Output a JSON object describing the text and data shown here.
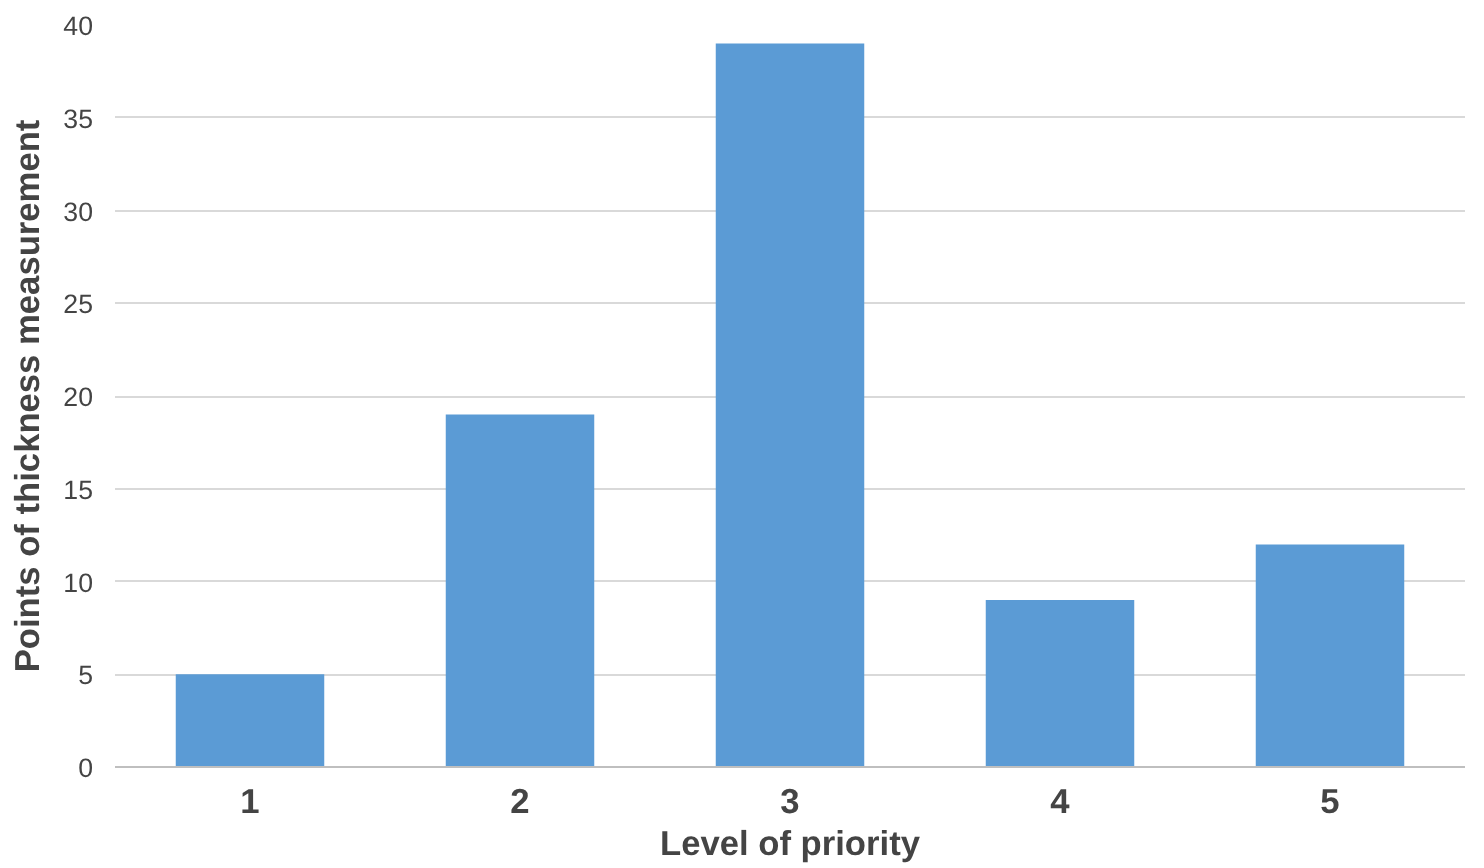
{
  "chart_data": {
    "type": "bar",
    "categories": [
      "1",
      "2",
      "3",
      "4",
      "5"
    ],
    "values": [
      5,
      19,
      39,
      9,
      12
    ],
    "color": "#5b9bd5",
    "xlabel": "Level of priority",
    "ylabel": "Points of thickness measurement",
    "ylim": [
      0,
      40
    ],
    "yticks": [
      0,
      5,
      10,
      15,
      20,
      25,
      30,
      35,
      40
    ],
    "grid": "y"
  }
}
